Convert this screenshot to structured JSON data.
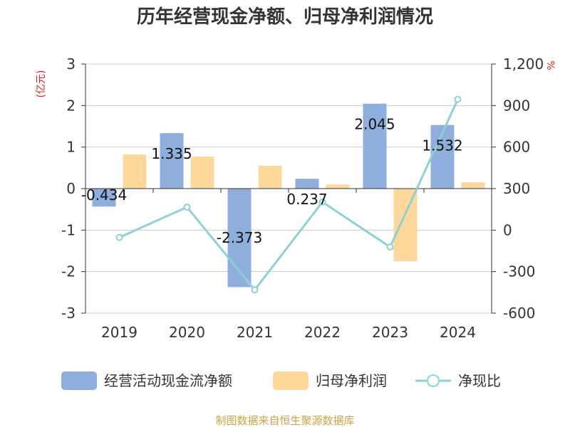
{
  "chart_data": {
    "type": "bar",
    "title": "历年经营现金净额、归母净利润情况",
    "categories": [
      "2019",
      "2020",
      "2021",
      "2022",
      "2023",
      "2024"
    ],
    "y_left": {
      "unit": "(亿元)",
      "min": -3,
      "max": 3,
      "ticks": [
        "3",
        "2",
        "1",
        "0",
        "-1",
        "-2",
        "-3"
      ]
    },
    "y_right": {
      "unit": "%",
      "min": -600,
      "max": 1200,
      "ticks": [
        "1,200",
        "900",
        "600",
        "300",
        "0",
        "-300",
        "-600"
      ]
    },
    "series": [
      {
        "name": "经营活动现金流净额",
        "type": "bar",
        "axis": "left",
        "color": "#8eaedc",
        "values": [
          -0.434,
          1.335,
          -2.373,
          0.237,
          2.045,
          1.532
        ],
        "labels": [
          "-0.434",
          "1.335",
          "-2.373",
          "0.237",
          "2.045",
          "1.532"
        ]
      },
      {
        "name": "归母净利润",
        "type": "bar",
        "axis": "left",
        "color": "#fdd89a",
        "values": [
          0.82,
          0.77,
          0.55,
          0.1,
          -1.75,
          0.15
        ]
      },
      {
        "name": "净现比",
        "type": "line",
        "axis": "right",
        "color": "#8cd1d6",
        "values": [
          -53,
          166,
          -432,
          203,
          -122,
          945
        ]
      }
    ],
    "grid": true,
    "legend": "bottom"
  },
  "source_text": "制图数据来自恒生聚源数据库"
}
